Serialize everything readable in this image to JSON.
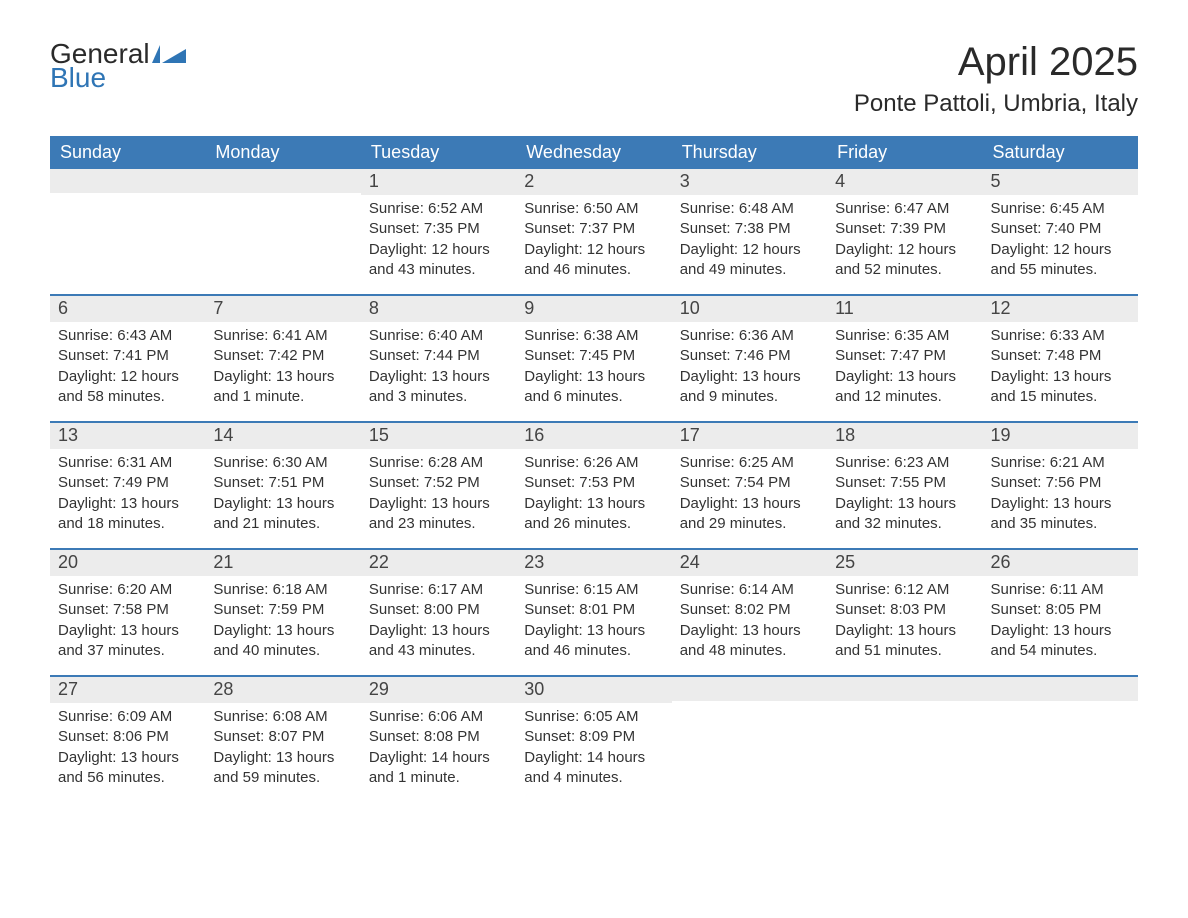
{
  "logo": {
    "word1": "General",
    "word2": "Blue"
  },
  "title": "April 2025",
  "subtitle": "Ponte Pattoli, Umbria, Italy",
  "colors": {
    "accent": "#3c7ab6",
    "header_bg": "#3c7ab6",
    "header_text": "#ffffff",
    "daynum_bg": "#ececec",
    "body_text": "#333333",
    "page_bg": "#ffffff",
    "logo_dark": "#2a2a2a",
    "logo_blue": "#2f75b5"
  },
  "typography": {
    "title_fontsize": 40,
    "subtitle_fontsize": 24,
    "dayhead_fontsize": 18,
    "daynum_fontsize": 18,
    "body_fontsize": 15,
    "font_family": "Arial"
  },
  "day_headers": [
    "Sunday",
    "Monday",
    "Tuesday",
    "Wednesday",
    "Thursday",
    "Friday",
    "Saturday"
  ],
  "weeks": [
    [
      {
        "empty": true
      },
      {
        "empty": true
      },
      {
        "n": "1",
        "sunrise": "Sunrise: 6:52 AM",
        "sunset": "Sunset: 7:35 PM",
        "daylight": "Daylight: 12 hours and 43 minutes."
      },
      {
        "n": "2",
        "sunrise": "Sunrise: 6:50 AM",
        "sunset": "Sunset: 7:37 PM",
        "daylight": "Daylight: 12 hours and 46 minutes."
      },
      {
        "n": "3",
        "sunrise": "Sunrise: 6:48 AM",
        "sunset": "Sunset: 7:38 PM",
        "daylight": "Daylight: 12 hours and 49 minutes."
      },
      {
        "n": "4",
        "sunrise": "Sunrise: 6:47 AM",
        "sunset": "Sunset: 7:39 PM",
        "daylight": "Daylight: 12 hours and 52 minutes."
      },
      {
        "n": "5",
        "sunrise": "Sunrise: 6:45 AM",
        "sunset": "Sunset: 7:40 PM",
        "daylight": "Daylight: 12 hours and 55 minutes."
      }
    ],
    [
      {
        "n": "6",
        "sunrise": "Sunrise: 6:43 AM",
        "sunset": "Sunset: 7:41 PM",
        "daylight": "Daylight: 12 hours and 58 minutes."
      },
      {
        "n": "7",
        "sunrise": "Sunrise: 6:41 AM",
        "sunset": "Sunset: 7:42 PM",
        "daylight": "Daylight: 13 hours and 1 minute."
      },
      {
        "n": "8",
        "sunrise": "Sunrise: 6:40 AM",
        "sunset": "Sunset: 7:44 PM",
        "daylight": "Daylight: 13 hours and 3 minutes."
      },
      {
        "n": "9",
        "sunrise": "Sunrise: 6:38 AM",
        "sunset": "Sunset: 7:45 PM",
        "daylight": "Daylight: 13 hours and 6 minutes."
      },
      {
        "n": "10",
        "sunrise": "Sunrise: 6:36 AM",
        "sunset": "Sunset: 7:46 PM",
        "daylight": "Daylight: 13 hours and 9 minutes."
      },
      {
        "n": "11",
        "sunrise": "Sunrise: 6:35 AM",
        "sunset": "Sunset: 7:47 PM",
        "daylight": "Daylight: 13 hours and 12 minutes."
      },
      {
        "n": "12",
        "sunrise": "Sunrise: 6:33 AM",
        "sunset": "Sunset: 7:48 PM",
        "daylight": "Daylight: 13 hours and 15 minutes."
      }
    ],
    [
      {
        "n": "13",
        "sunrise": "Sunrise: 6:31 AM",
        "sunset": "Sunset: 7:49 PM",
        "daylight": "Daylight: 13 hours and 18 minutes."
      },
      {
        "n": "14",
        "sunrise": "Sunrise: 6:30 AM",
        "sunset": "Sunset: 7:51 PM",
        "daylight": "Daylight: 13 hours and 21 minutes."
      },
      {
        "n": "15",
        "sunrise": "Sunrise: 6:28 AM",
        "sunset": "Sunset: 7:52 PM",
        "daylight": "Daylight: 13 hours and 23 minutes."
      },
      {
        "n": "16",
        "sunrise": "Sunrise: 6:26 AM",
        "sunset": "Sunset: 7:53 PM",
        "daylight": "Daylight: 13 hours and 26 minutes."
      },
      {
        "n": "17",
        "sunrise": "Sunrise: 6:25 AM",
        "sunset": "Sunset: 7:54 PM",
        "daylight": "Daylight: 13 hours and 29 minutes."
      },
      {
        "n": "18",
        "sunrise": "Sunrise: 6:23 AM",
        "sunset": "Sunset: 7:55 PM",
        "daylight": "Daylight: 13 hours and 32 minutes."
      },
      {
        "n": "19",
        "sunrise": "Sunrise: 6:21 AM",
        "sunset": "Sunset: 7:56 PM",
        "daylight": "Daylight: 13 hours and 35 minutes."
      }
    ],
    [
      {
        "n": "20",
        "sunrise": "Sunrise: 6:20 AM",
        "sunset": "Sunset: 7:58 PM",
        "daylight": "Daylight: 13 hours and 37 minutes."
      },
      {
        "n": "21",
        "sunrise": "Sunrise: 6:18 AM",
        "sunset": "Sunset: 7:59 PM",
        "daylight": "Daylight: 13 hours and 40 minutes."
      },
      {
        "n": "22",
        "sunrise": "Sunrise: 6:17 AM",
        "sunset": "Sunset: 8:00 PM",
        "daylight": "Daylight: 13 hours and 43 minutes."
      },
      {
        "n": "23",
        "sunrise": "Sunrise: 6:15 AM",
        "sunset": "Sunset: 8:01 PM",
        "daylight": "Daylight: 13 hours and 46 minutes."
      },
      {
        "n": "24",
        "sunrise": "Sunrise: 6:14 AM",
        "sunset": "Sunset: 8:02 PM",
        "daylight": "Daylight: 13 hours and 48 minutes."
      },
      {
        "n": "25",
        "sunrise": "Sunrise: 6:12 AM",
        "sunset": "Sunset: 8:03 PM",
        "daylight": "Daylight: 13 hours and 51 minutes."
      },
      {
        "n": "26",
        "sunrise": "Sunrise: 6:11 AM",
        "sunset": "Sunset: 8:05 PM",
        "daylight": "Daylight: 13 hours and 54 minutes."
      }
    ],
    [
      {
        "n": "27",
        "sunrise": "Sunrise: 6:09 AM",
        "sunset": "Sunset: 8:06 PM",
        "daylight": "Daylight: 13 hours and 56 minutes."
      },
      {
        "n": "28",
        "sunrise": "Sunrise: 6:08 AM",
        "sunset": "Sunset: 8:07 PM",
        "daylight": "Daylight: 13 hours and 59 minutes."
      },
      {
        "n": "29",
        "sunrise": "Sunrise: 6:06 AM",
        "sunset": "Sunset: 8:08 PM",
        "daylight": "Daylight: 14 hours and 1 minute."
      },
      {
        "n": "30",
        "sunrise": "Sunrise: 6:05 AM",
        "sunset": "Sunset: 8:09 PM",
        "daylight": "Daylight: 14 hours and 4 minutes."
      },
      {
        "empty": true
      },
      {
        "empty": true
      },
      {
        "empty": true
      }
    ]
  ]
}
